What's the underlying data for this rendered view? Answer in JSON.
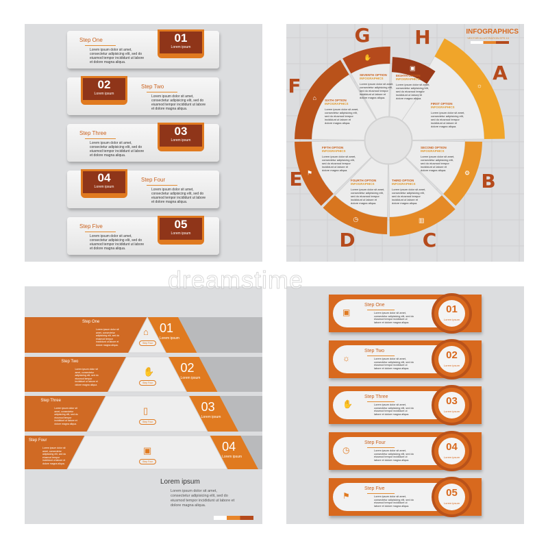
{
  "lorem": "Lorem ipsum dolor sit amet, consectetur adipisicing elit, sed do eiusmod tempor incididunt ut labore et dolore magna aliqua.",
  "lorem_short": "Lorem ipsum",
  "colors": {
    "dark": "#8f3519",
    "brown": "#b54a1c",
    "orange": "#d8691e",
    "amber": "#f0a52a",
    "panel": "#dcdddf"
  },
  "watermark": "dreamstime",
  "top_left": {
    "steps": [
      {
        "label": "Step One",
        "number": "01"
      },
      {
        "label": "Step Two",
        "number": "02"
      },
      {
        "label": "Step Three",
        "number": "03"
      },
      {
        "label": "Step Four",
        "number": "04"
      },
      {
        "label": "Step Five",
        "number": "05"
      }
    ]
  },
  "top_right": {
    "title": "INFOGRAPHICS",
    "subtitle": "VECTOR ILLUSTRATION EPS 10",
    "segments": [
      {
        "letter": "A",
        "option": "FIRST OPTION",
        "icon": "lightbulb-icon"
      },
      {
        "letter": "B",
        "option": "SECOND OPTION",
        "icon": "gear-icon"
      },
      {
        "letter": "C",
        "option": "THIRD OPTION",
        "icon": "bar-chart-icon"
      },
      {
        "letter": "D",
        "option": "FOURTH OPTION",
        "icon": "clock-icon"
      },
      {
        "letter": "E",
        "option": "FIFTH OPTION",
        "icon": "presentation-icon"
      },
      {
        "letter": "F",
        "option": "SIXTH OPTION",
        "icon": "home-icon"
      },
      {
        "letter": "G",
        "option": "SEVENTH OPTION",
        "icon": "hand-coin-icon"
      },
      {
        "letter": "H",
        "option": "EIGHTH OPTION",
        "icon": "money-icon"
      }
    ],
    "option_sub": "INFOGRAPHICS"
  },
  "bottom_left": {
    "steps": [
      {
        "label": "Step One",
        "number": "01",
        "icon": "home-icon"
      },
      {
        "label": "Step Two",
        "number": "02",
        "icon": "hand-coin-icon"
      },
      {
        "label": "Step Three",
        "number": "03",
        "icon": "phone-chat-icon"
      },
      {
        "label": "Step Four",
        "number": "04",
        "icon": "money-icon"
      }
    ],
    "badge": "Step Four",
    "heading": "Lorem ipsum"
  },
  "bottom_right": {
    "steps": [
      {
        "label": "Step One",
        "number": "01",
        "icon": "money-icon"
      },
      {
        "label": "Step Two",
        "number": "02",
        "icon": "lightbulb-icon"
      },
      {
        "label": "Step Three",
        "number": "03",
        "icon": "hand-coin-icon"
      },
      {
        "label": "Step Four",
        "number": "04",
        "icon": "clock-icon"
      },
      {
        "label": "Step Five",
        "number": "05",
        "icon": "presentation-icon"
      }
    ]
  }
}
